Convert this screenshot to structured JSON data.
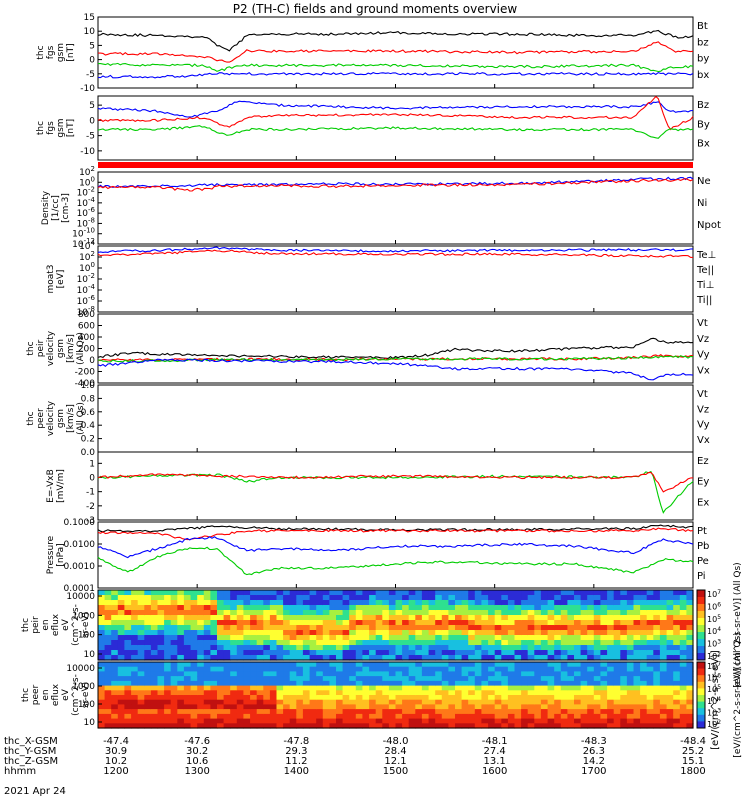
{
  "title": "P2 (TH-C) fields and ground moments overview",
  "colors": {
    "black": "#000000",
    "red": "#ff0000",
    "green": "#00cc00",
    "blue": "#0000ff"
  },
  "chart_data": [
    {
      "type": "line",
      "panel": "fgs_gsm",
      "ylabel_lines": [
        "thc",
        "fgs",
        "gsm",
        "[nT]"
      ],
      "yticks": [
        "15",
        "10",
        "5",
        "0",
        "-5",
        "-10"
      ],
      "ylim": [
        -10,
        15
      ],
      "legend": [
        {
          "name": "Bt",
          "color": "#000000"
        },
        {
          "name": "bz",
          "color": "#ff0000"
        },
        {
          "name": "by",
          "color": "#00cc00"
        },
        {
          "name": "bx",
          "color": "#0000ff"
        }
      ],
      "series": [
        {
          "name": "Bt",
          "x": [
            0,
            0.1,
            0.18,
            0.2,
            0.22,
            0.25,
            0.3,
            0.4,
            0.5,
            0.6,
            0.7,
            0.8,
            0.9,
            0.94,
            0.97,
            1.0
          ],
          "values": [
            9,
            8.5,
            8,
            5,
            3,
            8.5,
            9,
            9,
            9.5,
            9,
            9,
            8.5,
            8.5,
            10,
            8,
            8
          ]
        },
        {
          "name": "bz",
          "x": [
            0,
            0.1,
            0.18,
            0.2,
            0.22,
            0.25,
            0.3,
            0.5,
            0.7,
            0.9,
            0.94,
            0.97,
            1.0
          ],
          "values": [
            2,
            2,
            1,
            0,
            -1,
            3,
            3,
            3,
            2.5,
            3,
            6,
            3,
            3
          ]
        },
        {
          "name": "by",
          "x": [
            0,
            0.1,
            0.18,
            0.2,
            0.22,
            0.25,
            0.3,
            0.5,
            0.7,
            0.9,
            0.94,
            0.97,
            1.0
          ],
          "values": [
            -1.5,
            -2,
            -2,
            -4,
            -3,
            -2,
            -2,
            -2,
            -2.5,
            -2,
            -4,
            -2.5,
            -2.5
          ]
        },
        {
          "name": "bx",
          "x": [
            0,
            0.15,
            0.2,
            0.25,
            0.3,
            0.5,
            0.7,
            0.9,
            0.94,
            1.0
          ],
          "values": [
            -6,
            -6,
            -5,
            -5,
            -5,
            -5,
            -5,
            -5,
            -5,
            -5
          ]
        }
      ]
    },
    {
      "type": "line",
      "panel": "fgs_dsl",
      "ylabel_lines": [
        "thc",
        "fgs",
        "gsm",
        "[nT]"
      ],
      "yticks": [
        "5",
        "0",
        "-5",
        "-10"
      ],
      "ylim": [
        -13,
        8
      ],
      "legend": [
        {
          "name": "Bz",
          "color": "#ff0000"
        },
        {
          "name": "By",
          "color": "#00cc00"
        },
        {
          "name": "Bx",
          "color": "#0000ff"
        }
      ],
      "series": [
        {
          "name": "Bx",
          "x": [
            0,
            0.1,
            0.15,
            0.2,
            0.23,
            0.25,
            0.3,
            0.5,
            0.7,
            0.9,
            0.94,
            0.96,
            1.0
          ],
          "values": [
            4,
            3,
            1,
            3,
            6,
            6,
            5,
            4,
            4.5,
            4.5,
            6,
            3,
            3
          ]
        },
        {
          "name": "Bz",
          "x": [
            0,
            0.1,
            0.18,
            0.2,
            0.22,
            0.25,
            0.3,
            0.5,
            0.7,
            0.9,
            0.94,
            0.96,
            1.0
          ],
          "values": [
            0,
            0,
            1,
            -1,
            -2,
            1,
            1.5,
            2,
            1,
            1,
            8,
            -3,
            1
          ]
        },
        {
          "name": "By",
          "x": [
            0,
            0.1,
            0.18,
            0.2,
            0.22,
            0.25,
            0.3,
            0.5,
            0.7,
            0.9,
            0.94,
            0.96,
            1.0
          ],
          "values": [
            -3,
            -3,
            -2,
            -4,
            -5,
            -3,
            -3,
            -2.5,
            -3,
            -3,
            -6,
            -3,
            -3
          ]
        }
      ]
    },
    {
      "type": "line",
      "panel": "density",
      "log": true,
      "ylabel_lines": [
        "Density",
        "[1/cc]",
        "[cm-3]"
      ],
      "yticks": [
        "10^2",
        "10^0",
        "10^-2",
        "10^-4",
        "10^-6",
        "10^-8",
        "10^-10",
        "10^-12"
      ],
      "ylim": [
        -12,
        2
      ],
      "legend": [
        {
          "name": "Ne",
          "color": "#ff0000"
        },
        {
          "name": "Ni",
          "color": "#000000"
        },
        {
          "name": "Npot",
          "color": "#0000ff"
        }
      ],
      "series": [
        {
          "name": "Npot",
          "x": [
            0,
            0.1,
            0.2,
            0.3,
            0.4,
            0.5,
            0.6,
            0.7,
            0.8,
            0.9,
            1.0
          ],
          "values": [
            -0.8,
            -0.8,
            -0.5,
            -0.5,
            -0.3,
            -0.4,
            -0.3,
            -0.2,
            0.1,
            0.6,
            0.8
          ]
        },
        {
          "name": "Ne",
          "x": [
            0,
            0.1,
            0.15,
            0.19,
            0.2,
            0.3,
            0.4,
            0.5,
            0.6,
            0.7,
            0.8,
            0.9,
            1.0
          ],
          "values": [
            -1,
            -1,
            -1.5,
            -1.3,
            -0.8,
            -0.6,
            -0.8,
            -0.6,
            -0.5,
            -0.4,
            -0.1,
            0.3,
            0.5
          ]
        }
      ]
    },
    {
      "type": "line",
      "panel": "temperature",
      "log": true,
      "ylabel_lines": [
        "moat3",
        "[eV]"
      ],
      "yticks": [
        "10^4",
        "10^2",
        "10^0",
        "10^-2",
        "10^-4",
        "10^-6",
        "10^-8"
      ],
      "ylim": [
        -8,
        4
      ],
      "legend": [
        {
          "name": "Te⊥",
          "color": "#ff0000"
        },
        {
          "name": "Te||",
          "color": "#000000"
        },
        {
          "name": "Ti⊥",
          "color": "#0000ff"
        },
        {
          "name": "Ti||",
          "color": "#00cc00"
        }
      ],
      "series": [
        {
          "name": "Ti⊥",
          "x": [
            0,
            0.1,
            0.2,
            0.3,
            0.5,
            0.7,
            0.9,
            1.0
          ],
          "values": [
            3,
            3.2,
            3.6,
            3.2,
            3.1,
            3.2,
            3.3,
            3.3
          ]
        },
        {
          "name": "Te⊥",
          "x": [
            0,
            0.1,
            0.2,
            0.3,
            0.5,
            0.7,
            0.9,
            1.0
          ],
          "values": [
            2.4,
            2.6,
            3.2,
            2.6,
            2.5,
            2.5,
            2.2,
            2.1
          ]
        }
      ]
    },
    {
      "type": "line",
      "panel": "peir_velocity",
      "ylabel_lines": [
        "thc",
        "peir",
        "velocity",
        "gsm",
        "[km/s]",
        "(All Qs)"
      ],
      "yticks": [
        "800",
        "600",
        "400",
        "200",
        "0",
        "-200",
        "-400"
      ],
      "ylim": [
        -400,
        800
      ],
      "legend": [
        {
          "name": "Vt",
          "color": "#000000"
        },
        {
          "name": "Vz",
          "color": "#ff0000"
        },
        {
          "name": "Vy",
          "color": "#00cc00"
        },
        {
          "name": "Vx",
          "color": "#0000ff"
        }
      ],
      "series": [
        {
          "name": "Vt",
          "x": [
            0,
            0.05,
            0.1,
            0.2,
            0.3,
            0.4,
            0.5,
            0.55,
            0.6,
            0.7,
            0.8,
            0.9,
            0.93,
            0.96,
            1.0
          ],
          "values": [
            50,
            120,
            100,
            80,
            60,
            50,
            40,
            80,
            180,
            150,
            200,
            230,
            380,
            300,
            300
          ]
        },
        {
          "name": "Vz",
          "x": [
            0,
            0.2,
            0.4,
            0.6,
            0.8,
            0.9,
            0.95,
            1.0
          ],
          "values": [
            0,
            10,
            10,
            20,
            20,
            40,
            80,
            60
          ]
        },
        {
          "name": "Vy",
          "x": [
            0,
            0.2,
            0.4,
            0.6,
            0.8,
            0.9,
            0.95,
            1.0
          ],
          "values": [
            -20,
            0,
            10,
            20,
            20,
            40,
            60,
            50
          ]
        },
        {
          "name": "Vx",
          "x": [
            0,
            0.05,
            0.1,
            0.2,
            0.3,
            0.4,
            0.5,
            0.55,
            0.6,
            0.7,
            0.8,
            0.9,
            0.93,
            0.96,
            1.0
          ],
          "values": [
            -100,
            -60,
            0,
            -10,
            -20,
            -30,
            -60,
            -100,
            -150,
            -150,
            -160,
            -230,
            -350,
            -250,
            -250
          ]
        }
      ]
    },
    {
      "type": "line",
      "panel": "peer_velocity",
      "ylabel_lines": [
        "thc",
        "peer",
        "velocity",
        "gsm",
        "[km/s]",
        "(All Qs)"
      ],
      "yticks": [
        "1.0",
        "0.8",
        "0.6",
        "0.4",
        "0.2",
        "0.0"
      ],
      "ylim": [
        0,
        1
      ],
      "legend": [
        {
          "name": "Vt",
          "color": "#000000"
        },
        {
          "name": "Vz",
          "color": "#ff0000"
        },
        {
          "name": "Vy",
          "color": "#00cc00"
        },
        {
          "name": "Vx",
          "color": "#0000ff"
        }
      ],
      "series": []
    },
    {
      "type": "line",
      "panel": "efield",
      "ylabel_lines": [
        "E=-VxB",
        "[mV/m]"
      ],
      "yticks": [
        "1",
        "0",
        "-1",
        "-2",
        "-3"
      ],
      "ylim": [
        -3,
        1.8
      ],
      "legend": [
        {
          "name": "Ez",
          "color": "#ff0000"
        },
        {
          "name": "Ey",
          "color": "#00cc00"
        },
        {
          "name": "Ex",
          "color": "#0000ff"
        }
      ],
      "series": [
        {
          "name": "Ey",
          "x": [
            0,
            0.1,
            0.2,
            0.25,
            0.3,
            0.5,
            0.7,
            0.9,
            0.93,
            0.95,
            1.0
          ],
          "values": [
            0,
            0.1,
            0.2,
            -0.3,
            0,
            0,
            0.1,
            0,
            0.5,
            -2.5,
            -0.2
          ]
        },
        {
          "name": "Ez",
          "x": [
            0,
            0.1,
            0.2,
            0.3,
            0.5,
            0.7,
            0.9,
            0.93,
            0.95,
            1.0
          ],
          "values": [
            0,
            0.2,
            0.1,
            0,
            0.1,
            0,
            0,
            0.4,
            -1,
            0
          ]
        }
      ]
    },
    {
      "type": "line",
      "panel": "pressure",
      "log": true,
      "ylabel_lines": [
        "Pressure",
        "[nPa]"
      ],
      "yticks": [
        "0.1000",
        "0.0100",
        "0.0010",
        "0.0001"
      ],
      "ylim": [
        -4,
        -1
      ],
      "legend": [
        {
          "name": "Pt",
          "color": "#000000"
        },
        {
          "name": "Pb",
          "color": "#ff0000"
        },
        {
          "name": "Pe",
          "color": "#00cc00"
        },
        {
          "name": "Pi",
          "color": "#0000ff"
        }
      ],
      "series": [
        {
          "name": "Pt",
          "x": [
            0,
            0.1,
            0.2,
            0.3,
            0.5,
            0.7,
            0.9,
            0.95,
            1.0
          ],
          "values": [
            -1.4,
            -1.4,
            -1.2,
            -1.3,
            -1.35,
            -1.35,
            -1.3,
            -1.15,
            -1.25
          ]
        },
        {
          "name": "Pb",
          "x": [
            0,
            0.1,
            0.15,
            0.2,
            0.25,
            0.3,
            0.5,
            0.7,
            0.9,
            0.95,
            1.0
          ],
          "values": [
            -1.5,
            -1.5,
            -1.8,
            -1.6,
            -1.4,
            -1.4,
            -1.4,
            -1.4,
            -1.4,
            -1.3,
            -1.4
          ]
        },
        {
          "name": "Pi",
          "x": [
            0,
            0.05,
            0.1,
            0.15,
            0.2,
            0.25,
            0.3,
            0.4,
            0.5,
            0.6,
            0.7,
            0.8,
            0.9,
            0.95,
            1.0
          ],
          "values": [
            -2.1,
            -2.6,
            -2.2,
            -1.8,
            -1.7,
            -2.3,
            -2.2,
            -2.3,
            -2.1,
            -2.1,
            -2.0,
            -2.1,
            -2.4,
            -1.8,
            -2.0
          ]
        },
        {
          "name": "Pe",
          "x": [
            0,
            0.05,
            0.1,
            0.15,
            0.2,
            0.25,
            0.3,
            0.4,
            0.5,
            0.6,
            0.7,
            0.8,
            0.9,
            0.95,
            1.0
          ],
          "values": [
            -2.6,
            -3.3,
            -2.6,
            -2.2,
            -2.2,
            -3.4,
            -3.1,
            -3.1,
            -2.9,
            -2.8,
            -2.9,
            -2.9,
            -3.3,
            -2.7,
            -2.8
          ]
        }
      ]
    },
    {
      "type": "heatmap",
      "panel": "peir_spectrogram",
      "ylabel_lines": [
        "thc",
        "peir",
        "en",
        "eflux",
        "eV",
        "(cm^2-s-",
        "sr-eV)"
      ],
      "yticks": [
        "10000",
        "1000",
        "100",
        "10"
      ],
      "colorbar_label": "[eV/(cm^2-s-sr-eV)] (All Qs)"
    },
    {
      "type": "heatmap",
      "panel": "peer_spectrogram",
      "ylabel_lines": [
        "thc",
        "peer",
        "en",
        "eflux",
        "eV",
        "(cm^2-s-",
        "sr-eV)"
      ],
      "yticks": [
        "10000",
        "1000",
        "100",
        "10"
      ],
      "colorbar_label": "[eV/(cm^2-s-sr-eV)] (All Qs)"
    }
  ],
  "colorbar_ticks": [
    "10^7",
    "10^6",
    "10^5",
    "10^4",
    "10^3",
    "10^2"
  ],
  "axis": {
    "rows": [
      {
        "label": "thc_X-GSM",
        "values": [
          "-47.4",
          "-47.6",
          "-47.8",
          "-48.0",
          "-48.1",
          "-48.3",
          "-48.4"
        ]
      },
      {
        "label": "thc_Y-GSM",
        "values": [
          "30.9",
          "30.2",
          "29.3",
          "28.4",
          "27.4",
          "26.3",
          "25.2"
        ]
      },
      {
        "label": "thc_Z-GSM",
        "values": [
          "10.2",
          "10.6",
          "11.2",
          "12.1",
          "13.1",
          "14.2",
          "15.1"
        ]
      },
      {
        "label": "hhmm",
        "values": [
          "1200",
          "1300",
          "1400",
          "1500",
          "1600",
          "1700",
          "1800"
        ]
      }
    ],
    "date": "2021 Apr 24",
    "bottom_colorbar_label": "[eV/(cm^2-s-sr-eV)]"
  }
}
